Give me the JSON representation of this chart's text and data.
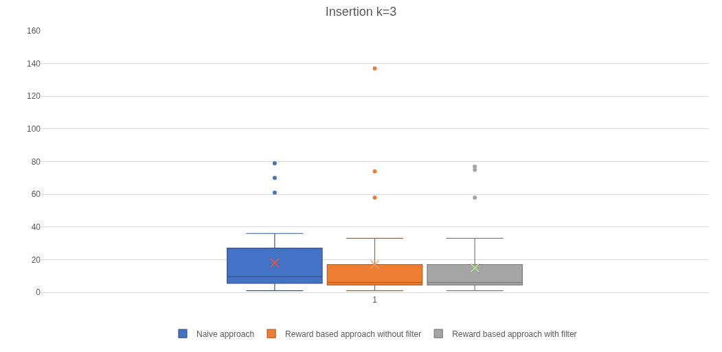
{
  "chart_data": {
    "type": "box",
    "title": "Insertion k=3",
    "categories": [
      "1"
    ],
    "ylim": [
      0,
      160
    ],
    "yticks": [
      0,
      20,
      40,
      60,
      80,
      100,
      120,
      140,
      160
    ],
    "grid": "y",
    "legend": "bottom",
    "series": [
      {
        "name": "Naive approach",
        "color": "#4472c4",
        "boxes": [
          {
            "low": 1,
            "q1": 5.5,
            "median": 9.5,
            "q3": 27,
            "high": 36,
            "mean": 18,
            "outliers": [
              61,
              70,
              79
            ]
          }
        ]
      },
      {
        "name": "Reward based approach without filter",
        "color": "#ed7d31",
        "boxes": [
          {
            "low": 1,
            "q1": 4.5,
            "median": 6,
            "q3": 17,
            "high": 33,
            "mean": 17,
            "outliers": [
              58,
              74,
              137
            ]
          }
        ]
      },
      {
        "name": "Reward based approach with filter",
        "color": "#a5a5a5",
        "boxes": [
          {
            "low": 1,
            "q1": 4.5,
            "median": 6,
            "q3": 17,
            "high": 33,
            "mean": 15,
            "outliers": [
              58,
              75,
              77
            ]
          }
        ]
      }
    ]
  }
}
